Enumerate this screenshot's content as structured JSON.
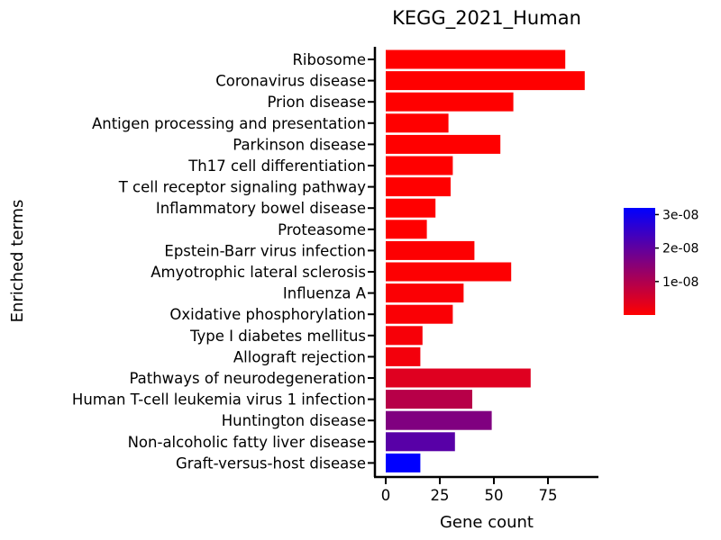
{
  "chart_data": {
    "type": "bar",
    "orientation": "horizontal",
    "title": "KEGG_2021_Human",
    "xlabel": "Gene count",
    "ylabel": "Enriched terms",
    "xlim": [
      0,
      97
    ],
    "xticks": [
      0,
      25,
      50,
      75
    ],
    "grid": false,
    "legend": {
      "type": "colorbar",
      "placement": "right",
      "range": [
        0,
        3.2e-08
      ],
      "ticks": [
        1e-08,
        2e-08,
        3e-08
      ],
      "tick_labels": [
        "1e-08",
        "2e-08",
        "3e-08"
      ],
      "color_low": "#ff0000",
      "color_high": "#0000ff"
    },
    "categories": [
      "Ribosome",
      "Coronavirus disease",
      "Prion disease",
      "Antigen processing and presentation",
      "Parkinson disease",
      "Th17 cell differentiation",
      "T cell receptor signaling pathway",
      "Inflammatory bowel disease",
      "Proteasome",
      "Epstein-Barr virus infection",
      "Amyotrophic lateral sclerosis",
      "Influenza A",
      "Oxidative phosphorylation",
      "Type I diabetes mellitus",
      "Allograft rejection",
      "Pathways of neurodegeneration",
      "Human T-cell leukemia virus 1 infection",
      "Huntington disease",
      "Non-alcoholic fatty liver disease",
      "Graft-versus-host disease"
    ],
    "values": [
      83,
      92,
      59,
      29,
      53,
      31,
      30,
      23,
      19,
      41,
      58,
      36,
      31,
      17,
      16,
      67,
      40,
      49,
      32,
      16
    ],
    "color_values": [
      1e-30,
      1e-25,
      1e-20,
      1e-13,
      1e-13,
      1e-12,
      1e-12,
      1e-11,
      1e-11,
      2e-10,
      3e-10,
      5e-10,
      6e-10,
      1e-09,
      1.5e-09,
      4e-09,
      9e-09,
      1.6e-08,
      2.1e-08,
      3.2e-08
    ]
  }
}
